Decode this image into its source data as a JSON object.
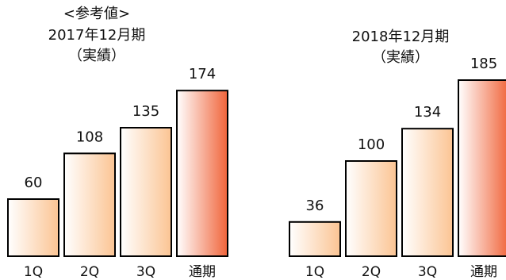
{
  "chart_data": [
    {
      "type": "bar",
      "title_lines": [
        "<参考値>",
        "2017年12月期",
        "（実績）"
      ],
      "categories": [
        "1Q",
        "2Q",
        "3Q",
        "通期"
      ],
      "values": [
        60,
        108,
        135,
        174
      ],
      "ylim": [
        0,
        190
      ],
      "highlight_index": 3,
      "grid": false,
      "legend": "none"
    },
    {
      "type": "bar",
      "title_lines": [
        "2018年12月期",
        "（実績）"
      ],
      "categories": [
        "1Q",
        "2Q",
        "3Q",
        "通期"
      ],
      "values": [
        36,
        100,
        134,
        185
      ],
      "ylim": [
        0,
        190
      ],
      "highlight_index": 3,
      "grid": false,
      "legend": "none"
    }
  ],
  "colors": {
    "bar_light_start": "#ffffff",
    "bar_light_end": "#fbc493",
    "bar_highlight_start": "#ffffff",
    "bar_highlight_end": "#f0643a",
    "bar_stroke": "#000000"
  }
}
